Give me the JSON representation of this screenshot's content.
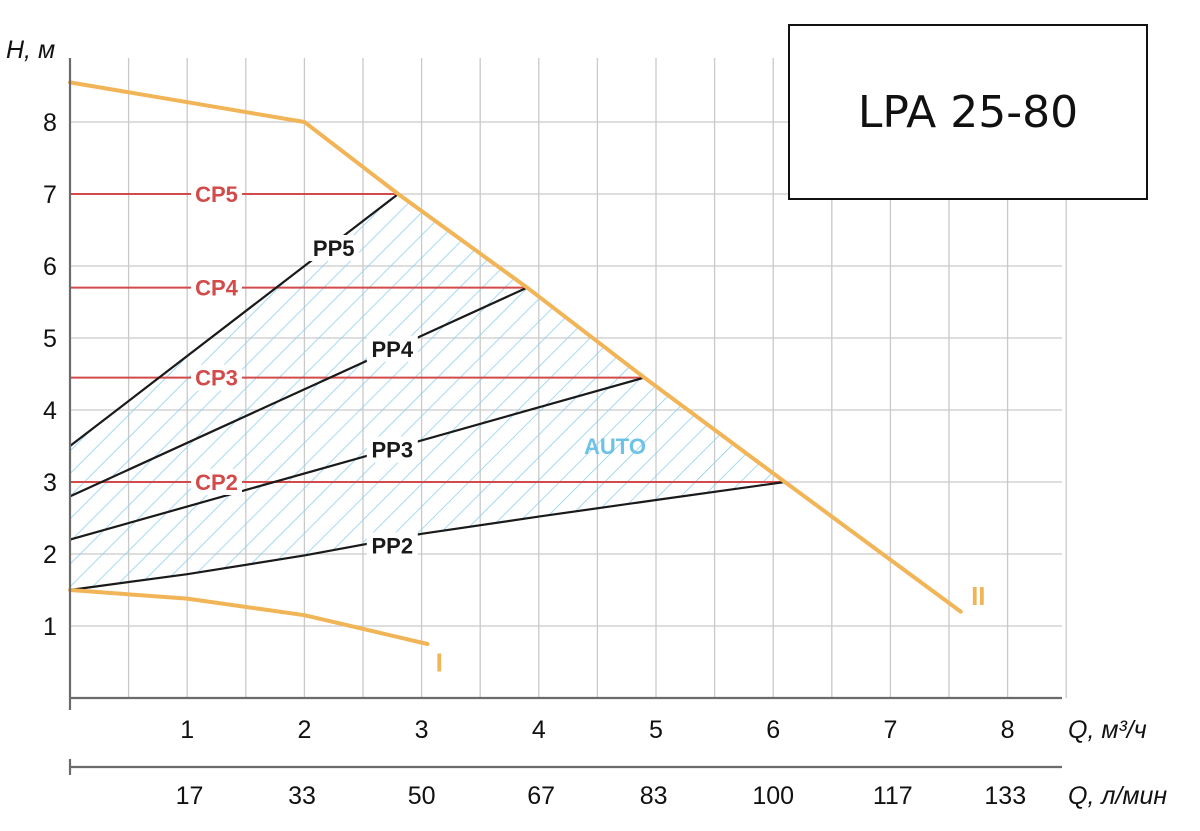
{
  "chart_data": {
    "type": "line",
    "title": "LPA 25-80",
    "ylabel": "H, м",
    "xlabel": "Q, м³/ч",
    "xlabel2": "Q, л/мин",
    "xlim": [
      0,
      8.5
    ],
    "ylim": [
      0,
      8.8
    ],
    "x_ticks": [
      1,
      2,
      3,
      4,
      5,
      6,
      7,
      8
    ],
    "x_tick_labels": [
      "1",
      "2",
      "3",
      "4",
      "5",
      "6",
      "7",
      "8"
    ],
    "x2_ticks": [
      1.02,
      1.98,
      3.0,
      4.02,
      4.98,
      6.0,
      7.02,
      7.98
    ],
    "x2_tick_labels": [
      "17",
      "33",
      "50",
      "67",
      "83",
      "100",
      "117",
      "133"
    ],
    "y_ticks": [
      1,
      2,
      3,
      4,
      5,
      6,
      7,
      8
    ],
    "y_tick_labels": [
      "1",
      "2",
      "3",
      "4",
      "5",
      "6",
      "7",
      "8"
    ],
    "grid": true,
    "series": [
      {
        "name": "II",
        "kind": "max",
        "color": "#f1b456",
        "x": [
          0,
          2.0,
          2.8,
          3.9,
          4.9,
          6.1,
          7.6
        ],
        "y": [
          8.55,
          8.0,
          7.0,
          5.7,
          4.45,
          3.0,
          1.2
        ]
      },
      {
        "name": "I",
        "kind": "min",
        "color": "#f1b456",
        "x": [
          0,
          1.0,
          2.0,
          3.05
        ],
        "y": [
          1.5,
          1.38,
          1.15,
          0.75
        ]
      },
      {
        "name": "CP5",
        "kind": "constant",
        "color": "#d24a4a",
        "x": [
          0,
          2.8
        ],
        "y": [
          7.0,
          7.0
        ]
      },
      {
        "name": "CP4",
        "kind": "constant",
        "color": "#d24a4a",
        "x": [
          0,
          3.9
        ],
        "y": [
          5.7,
          5.7
        ]
      },
      {
        "name": "CP3",
        "kind": "constant",
        "color": "#d24a4a",
        "x": [
          0,
          4.9
        ],
        "y": [
          4.45,
          4.45
        ]
      },
      {
        "name": "CP2",
        "kind": "constant",
        "color": "#d24a4a",
        "x": [
          0,
          6.1
        ],
        "y": [
          3.0,
          3.0
        ]
      },
      {
        "name": "PP5",
        "kind": "proportional",
        "color": "#1a1a1a",
        "x": [
          0,
          2.8
        ],
        "y": [
          3.5,
          7.0
        ]
      },
      {
        "name": "PP4",
        "kind": "proportional",
        "color": "#1a1a1a",
        "x": [
          0,
          3.9
        ],
        "y": [
          2.8,
          5.7
        ]
      },
      {
        "name": "PP3",
        "kind": "proportional",
        "color": "#1a1a1a",
        "x": [
          0,
          4.9
        ],
        "y": [
          2.2,
          4.45
        ]
      },
      {
        "name": "PP2",
        "kind": "proportional",
        "color": "#1a1a1a",
        "x": [
          0,
          1.0,
          2.0,
          3.0,
          4.0,
          5.0,
          6.1
        ],
        "y": [
          1.5,
          1.72,
          1.98,
          2.28,
          2.52,
          2.75,
          3.0
        ]
      }
    ],
    "region": {
      "name": "AUTO",
      "color": "#6cc3e6",
      "hatched": true,
      "boundary_x": [
        0,
        2.8,
        3.9,
        4.9,
        6.1,
        5.0,
        4.0,
        3.0,
        2.0,
        1.0,
        0
      ],
      "boundary_y": [
        3.5,
        7.0,
        5.7,
        4.45,
        3.0,
        2.75,
        2.52,
        2.28,
        1.98,
        1.72,
        1.5
      ]
    },
    "labels": [
      {
        "text": "CP5",
        "x": 1.25,
        "y": 7.0,
        "series": "CP5"
      },
      {
        "text": "CP4",
        "x": 1.25,
        "y": 5.7,
        "series": "CP4"
      },
      {
        "text": "CP3",
        "x": 1.25,
        "y": 4.45,
        "series": "CP3"
      },
      {
        "text": "CP2",
        "x": 1.25,
        "y": 3.0,
        "series": "CP2"
      },
      {
        "text": "PP5",
        "x": 2.25,
        "y": 6.25,
        "series": "PP5"
      },
      {
        "text": "PP4",
        "x": 2.75,
        "y": 4.85,
        "series": "PP4"
      },
      {
        "text": "PP3",
        "x": 2.75,
        "y": 3.45,
        "series": "PP3"
      },
      {
        "text": "PP2",
        "x": 2.75,
        "y": 2.12,
        "series": "PP2"
      },
      {
        "text": "AUTO",
        "x": 4.65,
        "y": 3.5,
        "series": "AUTO"
      },
      {
        "text": "I",
        "x": 3.15,
        "y": 0.48,
        "series": "I"
      },
      {
        "text": "II",
        "x": 7.75,
        "y": 1.4,
        "series": "II"
      }
    ]
  }
}
